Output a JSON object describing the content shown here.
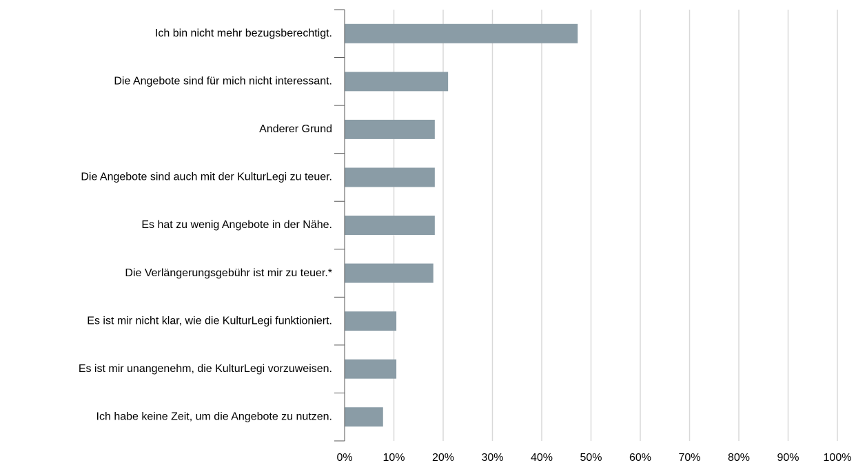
{
  "chart_data": {
    "type": "barh",
    "categories": [
      "Ich bin nicht mehr bezugsberechtigt.",
      "Die Angebote sind für mich nicht interessant.",
      "Anderer Grund",
      "Die Angebote sind auch mit der KulturLegi zu teuer.",
      "Es hat zu wenig Angebote in der Nähe.",
      "Die Verlängerungsgebühr ist mir zu teuer.*",
      "Es ist mir nicht klar, wie die KulturLegi funktioniert.",
      "Es ist mir unangenehm, die KulturLegi vorzuweisen.",
      "Ich habe keine Zeit, um die Angebote zu nutzen."
    ],
    "values": [
      47.3,
      21.0,
      18.3,
      18.3,
      18.3,
      18.0,
      10.5,
      10.5,
      7.8
    ],
    "color": "#8a9ca6",
    "xlim": [
      0,
      100
    ],
    "xticks": [
      {
        "value": 0,
        "label": "0%"
      },
      {
        "value": 10,
        "label": "10%"
      },
      {
        "value": 20,
        "label": "20%"
      },
      {
        "value": 30,
        "label": "30%"
      },
      {
        "value": 40,
        "label": "40%"
      },
      {
        "value": 50,
        "label": "50%"
      },
      {
        "value": 60,
        "label": "60%"
      },
      {
        "value": 70,
        "label": "70%"
      },
      {
        "value": 80,
        "label": "80%"
      },
      {
        "value": 90,
        "label": "90%"
      },
      {
        "value": 100,
        "label": "100%"
      }
    ],
    "grid": true
  }
}
